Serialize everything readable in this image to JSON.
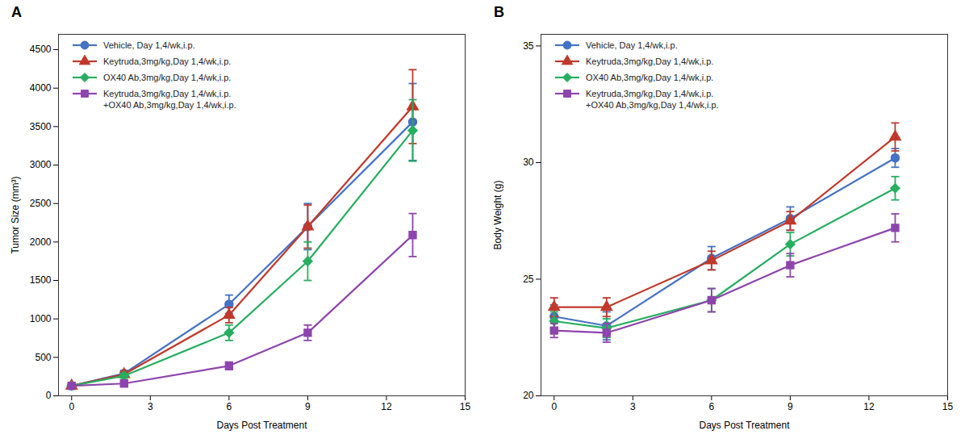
{
  "chart_data": [
    {
      "type": "line",
      "title": "A",
      "xlabel": "Days Post Treatment",
      "ylabel": "Tumor Size (mm³)",
      "xlim": [
        -0.5,
        15
      ],
      "ylim": [
        0,
        4700
      ],
      "xticks": [
        0,
        3,
        6,
        9,
        12,
        15
      ],
      "yticks": [
        0,
        500,
        1000,
        1500,
        2000,
        2500,
        3000,
        3500,
        4000,
        4500
      ],
      "legend": "upper left",
      "x": [
        0,
        2,
        6,
        9,
        13
      ],
      "series": [
        {
          "name": "Vehicle, Day 1,4/wk,i.p.",
          "color": "#4472C4",
          "marker": "circle",
          "values": [
            130,
            290,
            1190,
            2200,
            3560
          ],
          "yerr": [
            15,
            40,
            120,
            300,
            500
          ]
        },
        {
          "name": "Keytruda,3mg/kg,Day 1,4/wk,i.p.",
          "color": "#C0392B",
          "marker": "triangle",
          "values": [
            130,
            280,
            1050,
            2200,
            3760
          ],
          "yerr": [
            15,
            35,
            100,
            280,
            480
          ]
        },
        {
          "name": "OX40 Ab,3mg/kg,Day 1,4/wk,i.p.",
          "color": "#27AE60",
          "marker": "diamond",
          "values": [
            130,
            260,
            820,
            1750,
            3450
          ],
          "yerr": [
            15,
            30,
            100,
            250,
            400
          ]
        },
        {
          "name": "Keytruda,3mg/kg,Day 1,4/wk,i.p.\n+OX40 Ab,3mg/kg,Day 1,4/wk,i.p.",
          "color": "#8E44AD",
          "marker": "square",
          "values": [
            130,
            160,
            390,
            820,
            2090
          ],
          "yerr": [
            15,
            25,
            50,
            100,
            280
          ]
        }
      ]
    },
    {
      "type": "line",
      "title": "B",
      "xlabel": "Days Post Treatment",
      "ylabel": "Body Weight (g)",
      "xlim": [
        -0.5,
        15
      ],
      "ylim": [
        20,
        35.5
      ],
      "xticks": [
        0,
        3,
        6,
        9,
        12,
        15
      ],
      "yticks": [
        20,
        25,
        30,
        35
      ],
      "legend": "upper left",
      "x": [
        0,
        2,
        6,
        9,
        13
      ],
      "series": [
        {
          "name": "Vehicle, Day 1,4/wk,i.p.",
          "color": "#4472C4",
          "marker": "circle",
          "values": [
            23.4,
            23.0,
            25.9,
            27.6,
            30.2
          ],
          "yerr": [
            0.5,
            0.6,
            0.5,
            0.5,
            0.4
          ]
        },
        {
          "name": "Keytruda,3mg/kg,Day 1,4/wk,i.p.",
          "color": "#C0392B",
          "marker": "triangle",
          "values": [
            23.8,
            23.8,
            25.8,
            27.5,
            31.1
          ],
          "yerr": [
            0.4,
            0.4,
            0.4,
            0.4,
            0.6
          ]
        },
        {
          "name": "OX40 Ab,3mg/kg,Day 1,4/wk,i.p.",
          "color": "#27AE60",
          "marker": "diamond",
          "values": [
            23.2,
            22.9,
            24.1,
            26.5,
            28.9
          ],
          "yerr": [
            0.4,
            0.4,
            0.5,
            0.5,
            0.5
          ]
        },
        {
          "name": "Keytruda,3mg/kg,Day 1,4/wk,i.p.\n+OX40 Ab,3mg/kg,Day 1,4/wk,i.p.",
          "color": "#8E44AD",
          "marker": "square",
          "values": [
            22.8,
            22.7,
            24.1,
            25.6,
            27.2
          ],
          "yerr": [
            0.3,
            0.4,
            0.5,
            0.5,
            0.6
          ]
        }
      ]
    }
  ]
}
